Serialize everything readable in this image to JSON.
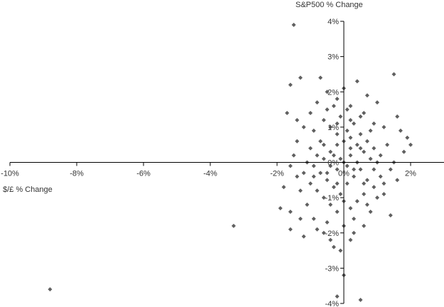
{
  "chart_data": {
    "type": "scatter",
    "xlabel": "$/£ % Change",
    "ylabel": "S&P500 % Change",
    "xlim": [
      -10,
      3
    ],
    "ylim": [
      -4,
      4
    ],
    "x_ticks": [
      -10,
      -8,
      -6,
      -4,
      -2,
      0,
      2
    ],
    "y_ticks": [
      -4,
      -3,
      -2,
      -1,
      0,
      1,
      2,
      3,
      4
    ],
    "x_tick_labels": [
      "-10%",
      "-8%",
      "-6%",
      "-4%",
      "-2%",
      "0%",
      "2%"
    ],
    "y_tick_labels": [
      "-4%",
      "-3%",
      "-2%",
      "-1%",
      "0%",
      "1%",
      "2%",
      "3%",
      "4%"
    ],
    "grid": false,
    "marker": "diamond",
    "marker_color": "#606060",
    "points": [
      [
        -8.8,
        -3.6
      ],
      [
        -3.3,
        -1.8
      ],
      [
        -1.5,
        3.9
      ],
      [
        -1.6,
        2.2
      ],
      [
        -1.3,
        2.4
      ],
      [
        -0.7,
        2.4
      ],
      [
        0.4,
        2.3
      ],
      [
        1.5,
        2.5
      ],
      [
        -1.7,
        1.4
      ],
      [
        -1.9,
        -1.3
      ],
      [
        -1.6,
        -1.4
      ],
      [
        -1.6,
        -1.9
      ],
      [
        -1.2,
        -2.1
      ],
      [
        -0.2,
        -3.8
      ],
      [
        0.0,
        -3.2
      ],
      [
        0.5,
        -3.9
      ],
      [
        1.4,
        -1.5
      ],
      [
        2.0,
        0.5
      ],
      [
        1.9,
        0.7
      ],
      [
        -1.8,
        -0.7
      ],
      [
        -0.2,
        1.8
      ],
      [
        0.2,
        1.6
      ],
      [
        0.6,
        1.4
      ],
      [
        1.0,
        1.7
      ],
      [
        1.2,
        1.0
      ],
      [
        1.6,
        1.3
      ],
      [
        1.8,
        0.3
      ],
      [
        1.4,
        -0.2
      ],
      [
        1.2,
        -0.6
      ],
      [
        1.0,
        -1.0
      ],
      [
        0.8,
        -1.4
      ],
      [
        0.6,
        -1.8
      ],
      [
        0.2,
        -2.2
      ],
      [
        -0.1,
        -2.5
      ],
      [
        -0.3,
        -2.4
      ],
      [
        -0.6,
        -2.0
      ],
      [
        -0.9,
        -1.6
      ],
      [
        -1.1,
        -1.2
      ],
      [
        -1.3,
        -0.8
      ],
      [
        -1.4,
        -0.4
      ],
      [
        -1.5,
        0.2
      ],
      [
        -1.4,
        0.6
      ],
      [
        -1.2,
        1.0
      ],
      [
        -1.0,
        1.4
      ],
      [
        -0.8,
        1.7
      ],
      [
        -0.5,
        2.0
      ],
      [
        0.0,
        2.1
      ],
      [
        -0.6,
        1.2
      ],
      [
        -0.4,
        1.0
      ],
      [
        -0.2,
        0.8
      ],
      [
        0.1,
        0.9
      ],
      [
        0.3,
        1.1
      ],
      [
        0.5,
        0.8
      ],
      [
        0.7,
        0.6
      ],
      [
        0.9,
        0.4
      ],
      [
        1.1,
        0.2
      ],
      [
        0.8,
        0.1
      ],
      [
        0.6,
        0.3
      ],
      [
        0.4,
        0.5
      ],
      [
        0.2,
        0.4
      ],
      [
        0.0,
        0.6
      ],
      [
        -0.2,
        0.5
      ],
      [
        -0.4,
        0.3
      ],
      [
        -0.6,
        0.1
      ],
      [
        -0.8,
        0.2
      ],
      [
        -1.0,
        0.4
      ],
      [
        -0.9,
        -0.1
      ],
      [
        -0.7,
        -0.3
      ],
      [
        -0.5,
        -0.5
      ],
      [
        -0.3,
        -0.7
      ],
      [
        -0.1,
        -0.9
      ],
      [
        0.1,
        -0.6
      ],
      [
        0.3,
        -0.4
      ],
      [
        0.5,
        -0.2
      ],
      [
        0.7,
        -0.5
      ],
      [
        0.9,
        -0.7
      ],
      [
        1.1,
        -0.4
      ],
      [
        0.6,
        -0.9
      ],
      [
        0.4,
        -1.1
      ],
      [
        0.2,
        -1.3
      ],
      [
        0.0,
        -1.1
      ],
      [
        -0.2,
        -1.4
      ],
      [
        -0.4,
        -1.2
      ],
      [
        -0.6,
        -1.0
      ],
      [
        -0.8,
        -0.8
      ],
      [
        -1.0,
        -0.6
      ],
      [
        -1.2,
        -0.3
      ],
      [
        -0.1,
        0.1
      ],
      [
        0.1,
        -0.1
      ],
      [
        0.0,
        0.0
      ],
      [
        -0.3,
        0.2
      ],
      [
        0.3,
        -0.2
      ],
      [
        0.2,
        0.2
      ],
      [
        -0.2,
        -0.2
      ],
      [
        0.5,
        1.3
      ],
      [
        -0.5,
        1.5
      ],
      [
        0.9,
        1.1
      ],
      [
        -0.9,
        0.9
      ],
      [
        1.3,
        0.5
      ],
      [
        -1.3,
        -1.6
      ],
      [
        0.3,
        -1.6
      ],
      [
        -0.5,
        -1.7
      ],
      [
        0.7,
        -1.2
      ],
      [
        1.5,
        0.0
      ],
      [
        -1.6,
        -0.1
      ],
      [
        -0.1,
        1.3
      ],
      [
        0.0,
        -1.8
      ],
      [
        0.8,
        0.9
      ],
      [
        -0.7,
        0.6
      ],
      [
        0.4,
        0.0
      ],
      [
        -0.4,
        -0.1
      ],
      [
        0.2,
        0.7
      ],
      [
        -0.2,
        -0.6
      ],
      [
        0.6,
        -0.6
      ],
      [
        -0.6,
        0.5
      ],
      [
        1.0,
        0.0
      ],
      [
        -1.1,
        0.0
      ],
      [
        0.1,
        1.5
      ],
      [
        -0.3,
        1.6
      ],
      [
        0.7,
        1.9
      ],
      [
        -0.8,
        -1.9
      ],
      [
        0.3,
        -2.0
      ],
      [
        -0.4,
        -2.2
      ],
      [
        1.2,
        -0.9
      ],
      [
        1.6,
        -0.5
      ],
      [
        1.7,
        0.9
      ],
      [
        -1.4,
        1.2
      ],
      [
        -0.2,
        1.1
      ],
      [
        0.2,
        1.2
      ],
      [
        0.9,
        -0.2
      ],
      [
        -0.9,
        -0.4
      ],
      [
        0.5,
        0.4
      ],
      [
        -0.5,
        -0.3
      ]
    ]
  }
}
